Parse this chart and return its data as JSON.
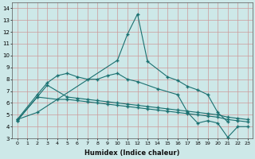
{
  "xlabel": "Humidex (Indice chaleur)",
  "bg_color": "#cde8e8",
  "grid_color": "#cc9999",
  "line_color": "#1a7070",
  "xlim": [
    -0.5,
    23.5
  ],
  "ylim": [
    3,
    14.5
  ],
  "line1_x": [
    0,
    2,
    10,
    11,
    12,
    13,
    15,
    16,
    17,
    18,
    19,
    20,
    21
  ],
  "line1_y": [
    4.6,
    5.2,
    9.6,
    11.8,
    13.5,
    9.5,
    8.2,
    7.9,
    7.4,
    7.1,
    6.7,
    5.2,
    4.4
  ],
  "line2_x": [
    0,
    2,
    3,
    4,
    5,
    6,
    7,
    8,
    9,
    10,
    11,
    12,
    14,
    16,
    17,
    18,
    19,
    20,
    21,
    22,
    23
  ],
  "line2_y": [
    4.6,
    6.7,
    7.7,
    8.3,
    8.5,
    8.2,
    8.0,
    8.0,
    8.3,
    8.5,
    8.0,
    7.8,
    7.2,
    6.7,
    5.2,
    4.3,
    4.5,
    4.3,
    3.1,
    4.0,
    4.0
  ],
  "line3_x": [
    0,
    2,
    3,
    5,
    6,
    7,
    8,
    9,
    10,
    11,
    12,
    13,
    14,
    15,
    16,
    17,
    18,
    19,
    20,
    21,
    22,
    23
  ],
  "line3_y": [
    4.5,
    6.5,
    7.5,
    6.5,
    6.4,
    6.3,
    6.2,
    6.1,
    6.0,
    5.9,
    5.8,
    5.7,
    5.6,
    5.5,
    5.4,
    5.3,
    5.2,
    5.1,
    5.0,
    4.8,
    4.7,
    4.6
  ],
  "line4_x": [
    0,
    2,
    4,
    5,
    6,
    7,
    8,
    9,
    10,
    11,
    12,
    13,
    14,
    15,
    16,
    17,
    18,
    19,
    20,
    21,
    22,
    23
  ],
  "line4_y": [
    4.5,
    6.5,
    6.3,
    6.3,
    6.2,
    6.1,
    6.0,
    5.9,
    5.8,
    5.7,
    5.6,
    5.5,
    5.4,
    5.3,
    5.2,
    5.1,
    5.0,
    4.9,
    4.8,
    4.6,
    4.5,
    4.4
  ]
}
